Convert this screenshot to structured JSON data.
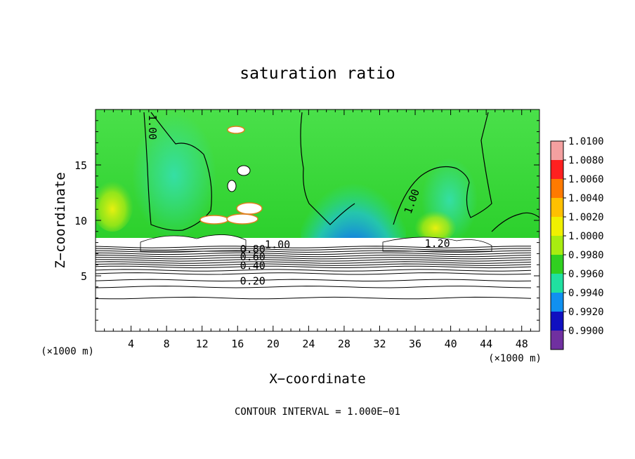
{
  "chart_data": {
    "type": "heatmap",
    "title": "saturation ratio",
    "xlabel": "X−coordinate",
    "ylabel": "Z−coordinate",
    "x_unit": "(×1000 m)",
    "xlim": [
      0,
      50
    ],
    "ylim": [
      0,
      20
    ],
    "x_ticks": [
      4,
      8,
      12,
      16,
      20,
      24,
      28,
      32,
      36,
      40,
      44,
      48
    ],
    "y_ticks": [
      5,
      10,
      15
    ],
    "footer": "CONTOUR INTERVAL = 1.000E−01",
    "colorbar": {
      "ticks": [
        "1.0100",
        "1.0080",
        "1.0060",
        "1.0040",
        "1.0020",
        "1.0000",
        "0.9980",
        "0.9960",
        "0.9940",
        "0.9920",
        "0.9900"
      ],
      "colors": [
        "#f4a0a0",
        "#ff2020",
        "#ff7a00",
        "#ffc000",
        "#f0f000",
        "#a8ec10",
        "#30d020",
        "#20e0a0",
        "#1090f0",
        "#1010c0",
        "#7030a0"
      ]
    },
    "contour_labels": [
      {
        "text": "1.00",
        "x": 6.0,
        "z": 18.4,
        "rot": 90
      },
      {
        "text": "1.00",
        "x": 20.5,
        "z": 7.5,
        "rot": 0
      },
      {
        "text": "1.20",
        "x": 38.5,
        "z": 7.6,
        "rot": 0
      },
      {
        "text": "0.80",
        "x": 17.7,
        "z": 7.1,
        "rot": 0
      },
      {
        "text": "0.60",
        "x": 17.7,
        "z": 6.4,
        "rot": 0
      },
      {
        "text": "0.40",
        "x": 17.7,
        "z": 5.6,
        "rot": 0
      },
      {
        "text": "0.20",
        "x": 17.7,
        "z": 4.2,
        "rot": 0
      },
      {
        "text": "1.00",
        "x": 36.0,
        "z": 11.6,
        "rot": -70
      }
    ],
    "layers": {
      "cloud_top_z": 8.5,
      "stable_contours_z": [
        7.6,
        7.4,
        7.2,
        7.0,
        6.8,
        6.6,
        6.4,
        6.2,
        6.0,
        5.8,
        5.5,
        5.2,
        4.6,
        4.0,
        3.0
      ],
      "dry_pocket_center_x": 29.0,
      "moist_bands_x": [
        3.0,
        20.0,
        39.0
      ]
    }
  }
}
